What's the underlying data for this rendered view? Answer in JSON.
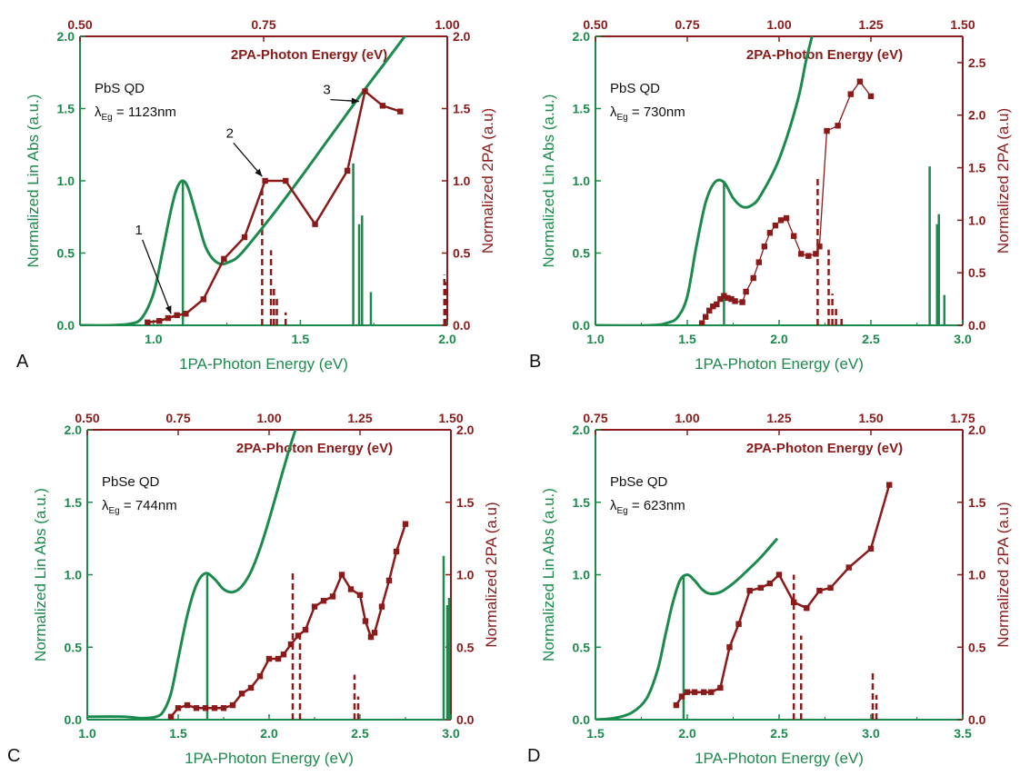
{
  "colors": {
    "green": "#1b8a4c",
    "red": "#8b1a1a",
    "text": "#111111"
  },
  "chart_data": [
    {
      "type": "line",
      "panel": "A",
      "xlabel": "1PA-Photon Energy (eV)",
      "ylabel": "Normalized Lin Abs (a.u.)",
      "ylabel_right": "Normalized 2PA (a.u)",
      "x2label": "2PA-Photon Energy (eV)",
      "xlim": [
        0.75,
        2.0
      ],
      "xticks": [
        1.0,
        1.5,
        2.0
      ],
      "xticklabels": [
        "1.0",
        "1.5",
        "2.0"
      ],
      "ylim": [
        0,
        2
      ],
      "yticks": [
        0,
        0.5,
        1,
        1.5,
        2
      ],
      "yticklabels": [
        "0.0",
        "0.5",
        "1.0",
        "1.5",
        "2.0"
      ],
      "y2lim": [
        0,
        2
      ],
      "y2ticks": [
        0,
        0.5,
        1,
        1.5,
        2
      ],
      "y2ticklabels": [
        "0.0",
        "0.5",
        "1.0",
        "1.5",
        "2.0"
      ],
      "x2ticks": [
        0.5,
        0.75,
        1.0
      ],
      "x2ticklabels": [
        "0.50",
        "0.75",
        "1.00"
      ],
      "material": "PbS QD",
      "lambda_value": " = 1123nm",
      "series": [
        {
          "role": "linear absorption",
          "axis": "left",
          "color": "green",
          "x": [
            0.75,
            0.85,
            0.92,
            0.96,
            1.0,
            1.03,
            1.06,
            1.08,
            1.1,
            1.12,
            1.15,
            1.18,
            1.22,
            1.26,
            1.3,
            1.4,
            1.5,
            1.6,
            1.7,
            1.8,
            1.9
          ],
          "y": [
            0.0,
            0.0,
            0.01,
            0.05,
            0.22,
            0.5,
            0.8,
            0.95,
            1.0,
            0.94,
            0.73,
            0.53,
            0.43,
            0.44,
            0.5,
            0.75,
            1.02,
            1.3,
            1.58,
            1.85,
            2.12
          ]
        },
        {
          "role": "two-photon absorption",
          "axis": "right",
          "color": "red",
          "marker": "square",
          "x": [
            0.98,
            1.02,
            1.05,
            1.08,
            1.11,
            1.17,
            1.24,
            1.31,
            1.38,
            1.45,
            1.55,
            1.66,
            1.72,
            1.78,
            1.84
          ],
          "y": [
            0.02,
            0.03,
            0.05,
            0.07,
            0.08,
            0.18,
            0.46,
            0.61,
            1.0,
            1.0,
            0.7,
            1.07,
            1.62,
            1.52,
            1.48
          ]
        }
      ],
      "green_sticks": [
        {
          "x": 1.1,
          "h": 1.0
        },
        {
          "x": 1.68,
          "h": 1.12
        },
        {
          "x": 1.7,
          "h": 0.7
        },
        {
          "x": 1.71,
          "h": 0.76
        },
        {
          "x": 1.74,
          "h": 0.23
        }
      ],
      "red_dashed_sticks": [
        {
          "x": 1.37,
          "h": 0.97
        },
        {
          "x": 1.4,
          "h": 0.52
        },
        {
          "x": 1.41,
          "h": 0.26
        },
        {
          "x": 1.42,
          "h": 0.2
        },
        {
          "x": 1.45,
          "h": 0.09
        },
        {
          "x": 1.99,
          "h": 0.35
        },
        {
          "x": 1.995,
          "h": 0.3
        }
      ],
      "annotations": [
        {
          "label": "1",
          "tx": 0.95,
          "ty": 0.63,
          "ax": 1.06,
          "ay": 0.08
        },
        {
          "label": "2",
          "tx": 1.26,
          "ty": 1.3,
          "ax": 1.37,
          "ay": 1.03
        },
        {
          "label": "3",
          "tx": 1.59,
          "ty": 1.6,
          "ax": 1.7,
          "ay": 1.55
        }
      ]
    },
    {
      "type": "line",
      "panel": "B",
      "xlabel": "1PA-Photon Energy (eV)",
      "ylabel": "Normalized Lin Abs (a.u.)",
      "ylabel_right": "Normalized 2PA (a.u)",
      "x2label": "2PA-Photon Energy (eV)",
      "xlim": [
        1.0,
        3.0
      ],
      "xticks": [
        1.0,
        1.5,
        2.0,
        2.5,
        3.0
      ],
      "xticklabels": [
        "1.0",
        "1.5",
        "2.0",
        "2.5",
        "3.0"
      ],
      "ylim": [
        0,
        2
      ],
      "yticks": [
        0,
        0.5,
        1,
        1.5,
        2
      ],
      "yticklabels": [
        "0.0",
        "0.5",
        "1.0",
        "1.5",
        "2.0"
      ],
      "y2lim": [
        0,
        2.75
      ],
      "y2ticks": [
        0,
        0.5,
        1,
        1.5,
        2,
        2.5
      ],
      "y2ticklabels": [
        "0.0",
        "0.5",
        "1.0",
        "1.5",
        "2.0",
        "2.5"
      ],
      "x2ticks": [
        0.5,
        0.75,
        1.0,
        1.25,
        1.5
      ],
      "x2ticklabels": [
        "0.50",
        "0.75",
        "1.00",
        "1.25",
        "1.50"
      ],
      "material": "PbS QD",
      "lambda_value": " = 730nm",
      "series": [
        {
          "role": "linear absorption",
          "axis": "left",
          "color": "green",
          "x": [
            1.0,
            1.3,
            1.4,
            1.45,
            1.5,
            1.55,
            1.6,
            1.65,
            1.7,
            1.75,
            1.8,
            1.85,
            1.9,
            2.0,
            2.1,
            2.15,
            2.2
          ],
          "y": [
            0.0,
            0.0,
            0.02,
            0.06,
            0.2,
            0.55,
            0.85,
            0.99,
            0.99,
            0.88,
            0.82,
            0.83,
            0.9,
            1.15,
            1.55,
            1.85,
            2.1
          ]
        },
        {
          "role": "two-photon absorption",
          "axis": "right",
          "color": "red",
          "marker": "square",
          "x": [
            1.58,
            1.6,
            1.62,
            1.64,
            1.66,
            1.68,
            1.7,
            1.72,
            1.74,
            1.76,
            1.8,
            1.82,
            1.86,
            1.89,
            1.92,
            1.95,
            1.98,
            2.01,
            2.04,
            2.08,
            2.12,
            2.16,
            2.2,
            2.22,
            2.26,
            2.32,
            2.39,
            2.44,
            2.5
          ],
          "y": [
            0.02,
            0.08,
            0.14,
            0.18,
            0.2,
            0.25,
            0.28,
            0.26,
            0.25,
            0.23,
            0.22,
            0.32,
            0.45,
            0.6,
            0.75,
            0.88,
            0.95,
            1.0,
            1.02,
            0.85,
            0.68,
            0.66,
            0.68,
            0.75,
            1.85,
            1.9,
            2.2,
            2.32,
            2.18
          ]
        }
      ],
      "green_sticks": [
        {
          "x": 1.7,
          "h": 1.0
        },
        {
          "x": 2.82,
          "h": 1.1
        },
        {
          "x": 2.86,
          "h": 0.7
        },
        {
          "x": 2.87,
          "h": 0.77
        },
        {
          "x": 2.9,
          "h": 0.21
        }
      ],
      "red_dashed_sticks": [
        {
          "x": 2.21,
          "h": 1.4
        },
        {
          "x": 2.27,
          "h": 0.72
        },
        {
          "x": 2.29,
          "h": 0.3
        },
        {
          "x": 2.31,
          "h": 0.18
        },
        {
          "x": 2.34,
          "h": 0.08
        }
      ],
      "annotations": []
    },
    {
      "type": "line",
      "panel": "C",
      "xlabel": "1PA-Photon Energy (eV)",
      "ylabel": "Normalized Lin Abs (a.u.)",
      "ylabel_right": "Normalized 2PA (a.u)",
      "x2label": "2PA-Photon Energy (eV)",
      "xlim": [
        1.0,
        3.0
      ],
      "xticks": [
        1.0,
        1.5,
        2.0,
        2.5,
        3.0
      ],
      "xticklabels": [
        "1.0",
        "1.5",
        "2.0",
        "2.5",
        "3.0"
      ],
      "ylim": [
        0,
        2
      ],
      "yticks": [
        0,
        0.5,
        1,
        1.5,
        2
      ],
      "yticklabels": [
        "0.0",
        "0.5",
        "1.0",
        "1.5",
        "2.0"
      ],
      "y2lim": [
        0,
        2
      ],
      "y2ticks": [
        0,
        0.5,
        1,
        1.5,
        2
      ],
      "y2ticklabels": [
        "0.0",
        "0.5",
        "1.0",
        "1.5",
        "2.0"
      ],
      "x2ticks": [
        0.5,
        0.75,
        1.0,
        1.25,
        1.5
      ],
      "x2ticklabels": [
        "0.50",
        "0.75",
        "1.00",
        "1.25",
        "1.50"
      ],
      "material": "PbSe QD",
      "lambda_value": " = 744nm",
      "series": [
        {
          "role": "linear absorption",
          "axis": "left",
          "color": "green",
          "x": [
            1.0,
            1.2,
            1.3,
            1.38,
            1.42,
            1.46,
            1.5,
            1.55,
            1.6,
            1.65,
            1.7,
            1.75,
            1.8,
            1.85,
            1.9,
            1.95,
            2.0,
            2.05,
            2.1,
            2.15,
            2.2
          ],
          "y": [
            0.02,
            0.02,
            0.01,
            0.02,
            0.06,
            0.18,
            0.42,
            0.72,
            0.93,
            1.01,
            0.97,
            0.9,
            0.88,
            0.92,
            1.02,
            1.18,
            1.38,
            1.6,
            1.82,
            2.02,
            2.2
          ]
        },
        {
          "role": "two-photon absorption",
          "axis": "right",
          "color": "red",
          "marker": "square",
          "x": [
            1.46,
            1.5,
            1.55,
            1.6,
            1.65,
            1.7,
            1.75,
            1.8,
            1.85,
            1.9,
            1.95,
            2.0,
            2.05,
            2.08,
            2.12,
            2.16,
            2.2,
            2.25,
            2.3,
            2.35,
            2.4,
            2.45,
            2.5,
            2.53,
            2.56,
            2.58,
            2.62,
            2.66,
            2.7,
            2.75
          ],
          "y": [
            0.02,
            0.08,
            0.1,
            0.08,
            0.08,
            0.08,
            0.08,
            0.1,
            0.18,
            0.22,
            0.3,
            0.42,
            0.42,
            0.45,
            0.52,
            0.58,
            0.62,
            0.78,
            0.82,
            0.85,
            1.0,
            0.9,
            0.86,
            0.68,
            0.57,
            0.6,
            0.78,
            0.96,
            1.16,
            1.35
          ]
        }
      ],
      "green_sticks": [
        {
          "x": 1.66,
          "h": 1.0
        },
        {
          "x": 2.96,
          "h": 1.13
        },
        {
          "x": 2.98,
          "h": 0.79
        },
        {
          "x": 2.99,
          "h": 0.84
        }
      ],
      "red_dashed_sticks": [
        {
          "x": 2.13,
          "h": 1.01
        },
        {
          "x": 2.17,
          "h": 0.56
        },
        {
          "x": 2.47,
          "h": 0.31
        },
        {
          "x": 2.49,
          "h": 0.16
        }
      ],
      "annotations": []
    },
    {
      "type": "line",
      "panel": "D",
      "xlabel": "1PA-Photon Energy (eV)",
      "ylabel": "Normalized Lin Abs (a.u.)",
      "ylabel_right": "Normalized 2PA (a.u)",
      "x2label": "2PA-Photon Energy (eV)",
      "xlim": [
        1.5,
        3.5
      ],
      "xticks": [
        1.5,
        2.0,
        2.5,
        3.0,
        3.5
      ],
      "xticklabels": [
        "1.5",
        "2.0",
        "2.5",
        "3.0",
        "3.5"
      ],
      "ylim": [
        0,
        2
      ],
      "yticks": [
        0,
        0.5,
        1,
        1.5,
        2
      ],
      "yticklabels": [
        "0.0",
        "0.5",
        "1.0",
        "1.5",
        "2.0"
      ],
      "y2lim": [
        0,
        2
      ],
      "y2ticks": [
        0,
        0.5,
        1,
        1.5,
        2
      ],
      "y2ticklabels": [
        "0.0",
        "0.5",
        "1.0",
        "1.5",
        "2.0"
      ],
      "x2ticks": [
        0.75,
        1.0,
        1.25,
        1.5,
        1.75
      ],
      "x2ticklabels": [
        "0.75",
        "1.00",
        "1.25",
        "1.50",
        "1.75"
      ],
      "material": "PbSe QD",
      "lambda_value": " = 623nm",
      "series": [
        {
          "role": "linear absorption",
          "axis": "left",
          "color": "green",
          "x": [
            1.5,
            1.6,
            1.7,
            1.78,
            1.84,
            1.88,
            1.92,
            1.96,
            2.0,
            2.04,
            2.08,
            2.12,
            2.18,
            2.25,
            2.32,
            2.4,
            2.49
          ],
          "y": [
            0.0,
            0.01,
            0.05,
            0.15,
            0.35,
            0.58,
            0.8,
            0.96,
            1.0,
            0.96,
            0.9,
            0.87,
            0.88,
            0.94,
            1.02,
            1.12,
            1.25
          ]
        },
        {
          "role": "two-photon absorption",
          "axis": "right",
          "color": "red",
          "marker": "square",
          "x": [
            1.94,
            1.97,
            2.0,
            2.04,
            2.09,
            2.13,
            2.18,
            2.23,
            2.28,
            2.34,
            2.4,
            2.45,
            2.5,
            2.58,
            2.65,
            2.72,
            2.78,
            2.88,
            3.0,
            3.1
          ],
          "y": [
            0.1,
            0.16,
            0.19,
            0.19,
            0.19,
            0.19,
            0.22,
            0.5,
            0.66,
            0.89,
            0.91,
            0.94,
            1.0,
            0.81,
            0.77,
            0.89,
            0.91,
            1.05,
            1.18,
            1.62
          ]
        }
      ],
      "green_sticks": [
        {
          "x": 1.98,
          "h": 1.0
        }
      ],
      "red_dashed_sticks": [
        {
          "x": 2.58,
          "h": 1.0
        },
        {
          "x": 2.62,
          "h": 0.58
        },
        {
          "x": 3.01,
          "h": 0.34
        },
        {
          "x": 3.03,
          "h": 0.17
        }
      ],
      "annotations": []
    }
  ]
}
